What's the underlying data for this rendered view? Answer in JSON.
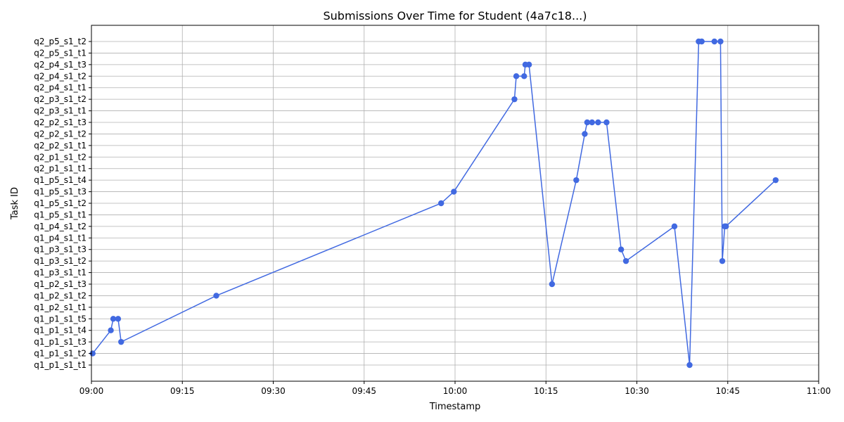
{
  "chart_data": {
    "type": "line",
    "title": "Submissions Over Time for Student (4a7c18...)",
    "xlabel": "Timestamp",
    "ylabel": "Task ID",
    "grid": true,
    "line_color": "#4169e1",
    "xlim": [
      "09:00",
      "11:00"
    ],
    "x_ticks": [
      "09:00",
      "09:15",
      "09:30",
      "09:45",
      "10:00",
      "10:15",
      "10:30",
      "10:45",
      "11:00"
    ],
    "categories": [
      "q1_p1_s1_t1",
      "q1_p1_s1_t2",
      "q1_p1_s1_t3",
      "q1_p1_s1_t4",
      "q1_p1_s1_t5",
      "q1_p2_s1_t1",
      "q1_p2_s1_t2",
      "q1_p2_s1_t3",
      "q1_p3_s1_t1",
      "q1_p3_s1_t2",
      "q1_p3_s1_t3",
      "q1_p4_s1_t1",
      "q1_p4_s1_t2",
      "q1_p5_s1_t1",
      "q1_p5_s1_t2",
      "q1_p5_s1_t3",
      "q1_p5_s1_t4",
      "q2_p1_s1_t1",
      "q2_p1_s1_t2",
      "q2_p2_s1_t1",
      "q2_p2_s1_t2",
      "q2_p2_s1_t3",
      "q2_p3_s1_t1",
      "q2_p3_s1_t2",
      "q2_p4_s1_t1",
      "q2_p4_s1_t2",
      "q2_p4_s1_t3",
      "q2_p5_s1_t1",
      "q2_p5_s1_t2"
    ],
    "series": [
      {
        "points": [
          {
            "x": "09:00:12",
            "y": "q1_p1_s1_t2"
          },
          {
            "x": "09:03:12",
            "y": "q1_p1_s1_t4"
          },
          {
            "x": "09:03:36",
            "y": "q1_p1_s1_t5"
          },
          {
            "x": "09:04:24",
            "y": "q1_p1_s1_t5"
          },
          {
            "x": "09:04:54",
            "y": "q1_p1_s1_t3"
          },
          {
            "x": "09:20:36",
            "y": "q1_p2_s1_t2"
          },
          {
            "x": "09:57:42",
            "y": "q1_p5_s1_t2"
          },
          {
            "x": "09:59:48",
            "y": "q1_p5_s1_t3"
          },
          {
            "x": "10:09:48",
            "y": "q2_p3_s1_t2"
          },
          {
            "x": "10:10:06",
            "y": "q2_p4_s1_t2"
          },
          {
            "x": "10:11:24",
            "y": "q2_p4_s1_t2"
          },
          {
            "x": "10:11:36",
            "y": "q2_p4_s1_t3"
          },
          {
            "x": "10:12:12",
            "y": "q2_p4_s1_t3"
          },
          {
            "x": "10:16:00",
            "y": "q1_p2_s1_t3"
          },
          {
            "x": "10:20:00",
            "y": "q1_p5_s1_t4"
          },
          {
            "x": "10:21:24",
            "y": "q2_p2_s1_t2"
          },
          {
            "x": "10:21:48",
            "y": "q2_p2_s1_t3"
          },
          {
            "x": "10:22:36",
            "y": "q2_p2_s1_t3"
          },
          {
            "x": "10:23:36",
            "y": "q2_p2_s1_t3"
          },
          {
            "x": "10:25:00",
            "y": "q2_p2_s1_t3"
          },
          {
            "x": "10:27:24",
            "y": "q1_p3_s1_t3"
          },
          {
            "x": "10:28:12",
            "y": "q1_p3_s1_t2"
          },
          {
            "x": "10:36:12",
            "y": "q1_p4_s1_t2"
          },
          {
            "x": "10:38:42",
            "y": "q1_p1_s1_t1"
          },
          {
            "x": "10:40:12",
            "y": "q2_p5_s1_t2"
          },
          {
            "x": "10:40:42",
            "y": "q2_p5_s1_t2"
          },
          {
            "x": "10:42:48",
            "y": "q2_p5_s1_t2"
          },
          {
            "x": "10:43:48",
            "y": "q2_p5_s1_t2"
          },
          {
            "x": "10:44:06",
            "y": "q1_p3_s1_t2"
          },
          {
            "x": "10:44:30",
            "y": "q1_p4_s1_t2"
          },
          {
            "x": "10:44:42",
            "y": "q1_p4_s1_t2"
          },
          {
            "x": "10:52:54",
            "y": "q1_p5_s1_t4"
          }
        ]
      }
    ]
  }
}
